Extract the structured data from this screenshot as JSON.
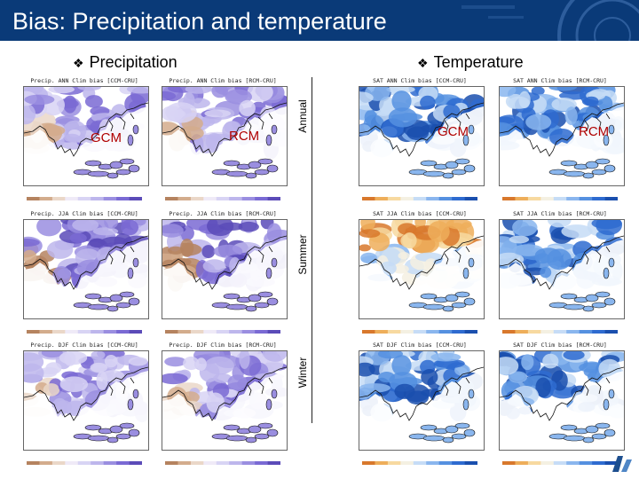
{
  "slide": {
    "title": "Bias: Precipitation and temperature"
  },
  "sections": {
    "precipitation": "Precipitation",
    "temperature": "Temperature",
    "bullet": "❖"
  },
  "row_labels": {
    "annual": "Annual",
    "summer": "Summer",
    "winter": "Winter"
  },
  "model_labels": {
    "gcm": "GCM",
    "rcm": "RCM"
  },
  "panels": {
    "p_ann_gcm": "Precip. ANN Clim bias [CCM-CRU]",
    "p_ann_rcm": "Precip. ANN Clim bias [RCM-CRU]",
    "t_ann_gcm": "SAT ANN Clim bias [CCM-CRU]",
    "t_ann_rcm": "SAT ANN Clim bias [RCM-CRU]",
    "p_jja_gcm": "Precip. JJA Clim bias [CCM-CRU]",
    "p_jja_rcm": "Precip. JJA Clim bias [RCM-CRU]",
    "t_jja_gcm": "SAT JJA Clim bias [CCM-CRU]",
    "t_jja_rcm": "SAT JJA Clim bias [RCM-CRU]",
    "p_djf_gcm": "Precip. DJF Clim bias [CCM-CRU]",
    "p_djf_rcm": "Precip. DJF Clim bias [RCM-CRU]",
    "t_djf_gcm": "SAT DJF Clim bias [CCM-CRU]",
    "t_djf_rcm": "SAT DJF Clim bias [RCM-CRU]"
  },
  "colors": {
    "header_bg": "#0a3a78",
    "label_red": "#b00000",
    "precip_dry": "#9c6b4a",
    "precip_wet": "#6a5acd",
    "temp_cold": "#1f5fc4",
    "temp_warm": "#e8a23a"
  },
  "icons": {
    "logo": "university-logo-icon"
  }
}
